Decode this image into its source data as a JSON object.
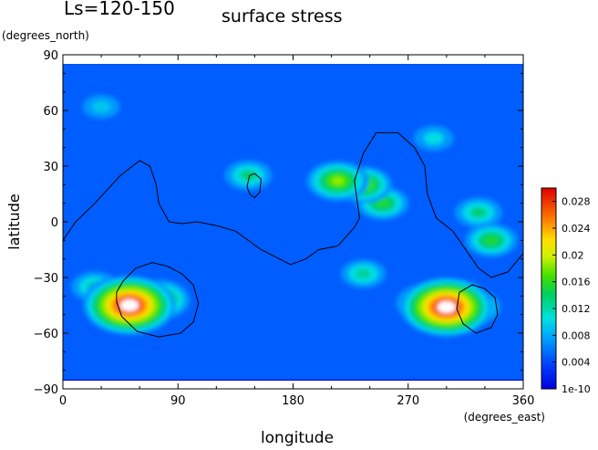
{
  "chart_data": {
    "type": "heatmap",
    "title": "Ls=120-150",
    "subtitle": "surface stress",
    "xlabel": "longitude",
    "ylabel": "latitude",
    "x_units": "(degrees_east)",
    "y_units": "(degrees_north)",
    "xlim": [
      0,
      360
    ],
    "ylim": [
      -90,
      90
    ],
    "x_ticks": [
      0,
      90,
      180,
      270,
      360
    ],
    "y_ticks": [
      -90,
      -60,
      -30,
      0,
      30,
      60,
      90
    ],
    "colorbar": {
      "min": 0,
      "max": 0.03,
      "min_label": "1e-10",
      "ticks": [
        0.004,
        0.008,
        0.012,
        0.016,
        0.02,
        0.024,
        0.028
      ],
      "tick_labels": [
        "0.004",
        "0.008",
        "0.012",
        "0.016",
        "0.02",
        "0.024",
        "0.028"
      ]
    },
    "data_extent_lat": [
      -85,
      85
    ],
    "background_value": 0.004,
    "field_features": [
      {
        "lon": 52,
        "lat": -45,
        "value": 0.03,
        "note": "peak"
      },
      {
        "lon": 40,
        "lat": -40,
        "value": 0.016
      },
      {
        "lon": 75,
        "lat": -42,
        "value": 0.018
      },
      {
        "lon": 300,
        "lat": -46,
        "value": 0.03,
        "note": "peak"
      },
      {
        "lon": 285,
        "lat": -44,
        "value": 0.018
      },
      {
        "lon": 320,
        "lat": -46,
        "value": 0.016
      },
      {
        "lon": 25,
        "lat": -35,
        "value": 0.012
      },
      {
        "lon": 215,
        "lat": 22,
        "value": 0.018
      },
      {
        "lon": 235,
        "lat": 20,
        "value": 0.016
      },
      {
        "lon": 250,
        "lat": 10,
        "value": 0.014
      },
      {
        "lon": 335,
        "lat": -10,
        "value": 0.014
      },
      {
        "lon": 325,
        "lat": 5,
        "value": 0.012
      },
      {
        "lon": 145,
        "lat": 25,
        "value": 0.012
      },
      {
        "lon": 235,
        "lat": -28,
        "value": 0.011
      },
      {
        "lon": 30,
        "lat": 62,
        "value": 0.008
      },
      {
        "lon": 290,
        "lat": 45,
        "value": 0.009
      }
    ],
    "contours": [
      {
        "name": "dichotomy",
        "points": [
          [
            0,
            -10
          ],
          [
            10,
            0
          ],
          [
            25,
            10
          ],
          [
            45,
            25
          ],
          [
            60,
            33
          ],
          [
            68,
            30
          ],
          [
            73,
            20
          ],
          [
            75,
            10
          ],
          [
            83,
            0
          ],
          [
            93,
            -1
          ],
          [
            105,
            0
          ],
          [
            120,
            -2
          ],
          [
            135,
            -5
          ],
          [
            155,
            -15
          ],
          [
            178,
            -23
          ],
          [
            190,
            -20
          ],
          [
            200,
            -15
          ],
          [
            215,
            -13
          ],
          [
            228,
            -3
          ],
          [
            232,
            2
          ],
          [
            228,
            22
          ],
          [
            235,
            37
          ],
          [
            245,
            48
          ],
          [
            262,
            48
          ],
          [
            275,
            40
          ],
          [
            283,
            30
          ],
          [
            285,
            15
          ],
          [
            292,
            2
          ],
          [
            305,
            -5
          ],
          [
            315,
            -15
          ],
          [
            325,
            -25
          ],
          [
            335,
            -30
          ],
          [
            348,
            -27
          ],
          [
            360,
            -17
          ]
        ]
      },
      {
        "name": "argyre",
        "points": [
          [
            42,
            -38
          ],
          [
            47,
            -32
          ],
          [
            57,
            -25
          ],
          [
            70,
            -22
          ],
          [
            82,
            -24
          ],
          [
            93,
            -28
          ],
          [
            102,
            -34
          ],
          [
            106,
            -44
          ],
          [
            102,
            -54
          ],
          [
            92,
            -60
          ],
          [
            75,
            -62
          ],
          [
            58,
            -59
          ],
          [
            46,
            -51
          ],
          [
            42,
            -43
          ],
          [
            42,
            -38
          ]
        ]
      },
      {
        "name": "hellas",
        "points": [
          [
            310,
            -38
          ],
          [
            320,
            -34
          ],
          [
            330,
            -36
          ],
          [
            338,
            -41
          ],
          [
            340,
            -50
          ],
          [
            335,
            -57
          ],
          [
            323,
            -60
          ],
          [
            313,
            -55
          ],
          [
            308,
            -47
          ],
          [
            310,
            -38
          ]
        ]
      },
      {
        "name": "olympus",
        "points": [
          [
            144,
            19
          ],
          [
            146,
            25
          ],
          [
            150,
            26
          ],
          [
            155,
            23
          ],
          [
            154,
            16
          ],
          [
            150,
            13
          ],
          [
            146,
            15
          ],
          [
            144,
            19
          ]
        ]
      }
    ]
  }
}
